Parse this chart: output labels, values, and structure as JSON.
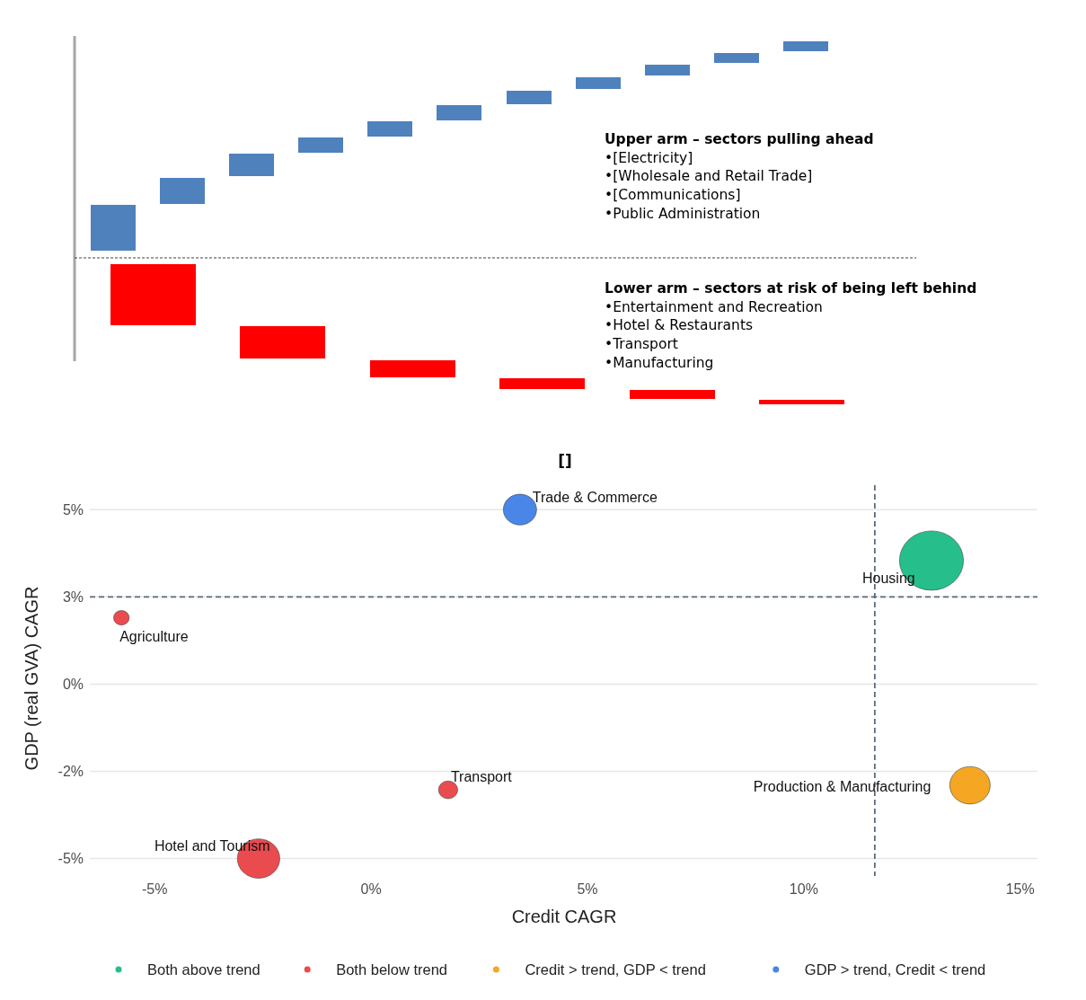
{
  "chart_data": [
    {
      "type": "other",
      "annotations": [
        "Upper arm – sectors pulling ahead\n•[Electricity]\n•[Wholesale and Retail Trade]\n•[Communications]\n•Public Administration",
        "Lower arm – sectors at risk of being left behind\n•Entertainment and Recreation\n•Hotel & Restaurants\n•Transport\n•Manufacturing"
      ]
    },
    {
      "type": "bubble",
      "title": "[]",
      "xlabel": "Credit CAGR",
      "ylabel": "GDP (real GVA) CAGR",
      "xlim": [
        -6.5,
        15.4
      ],
      "ylim": [
        -5.5,
        5.7
      ],
      "xticks": [
        {
          "value": -5,
          "label": "-5%"
        },
        {
          "value": 0,
          "label": "0%"
        },
        {
          "value": 5,
          "label": "5%"
        },
        {
          "value": 10,
          "label": "10%"
        },
        {
          "value": 15,
          "label": "15%"
        }
      ],
      "yticks": [
        {
          "value": -5,
          "label": "-5%"
        },
        {
          "value": -2.5,
          "label": "-2%"
        },
        {
          "value": 0,
          "label": "0%"
        },
        {
          "value": 2.5,
          "label": "3%"
        },
        {
          "value": 5,
          "label": "5%"
        }
      ],
      "grid": "y",
      "legend": "bottom",
      "series": [
        {
          "name": "Both above trend",
          "color": "#26bf8c",
          "x": [
            12.95
          ],
          "values": [
            3.54
          ],
          "sizes": [
            1
          ]
        },
        {
          "name": "Both below trend",
          "color": "#ea4b4f",
          "x": [
            -5.77,
            1.78,
            -2.6
          ],
          "values": [
            1.9,
            -3.03,
            -5.0
          ],
          "sizes": [
            0.06,
            0.09,
            0.44
          ]
        },
        {
          "name": "Credit > trend, GDP < trend",
          "color": "#f5a623",
          "x": [
            13.84
          ],
          "values": [
            -2.9
          ],
          "sizes": [
            0.4
          ]
        },
        {
          "name": "GDP > trend, Credit < trend",
          "color": "#4a86e8",
          "x": [
            3.44
          ],
          "values": [
            5.0
          ],
          "sizes": [
            0.27
          ]
        }
      ],
      "ref_lines": [
        {
          "axis": "x",
          "value": 11.64,
          "line_style": "dashed",
          "color": "#5a6a80"
        },
        {
          "axis": "y",
          "value": 2.5,
          "line_style": "dashed",
          "color": "#5a6a80"
        }
      ],
      "annotations": [
        {
          "text": "Housing",
          "x": 12.95,
          "y": 3.54
        },
        {
          "text": "Agriculture",
          "x": -5.77,
          "y": 1.9
        },
        {
          "text": "Transport",
          "x": 1.78,
          "y": -3.03
        },
        {
          "text": "Hotel and Tourism",
          "x": -2.6,
          "y": -5.0
        },
        {
          "text": "Production & Manufacturing",
          "x": 13.84,
          "y": -2.9
        },
        {
          "text": "Trade & Commerce",
          "x": 3.44,
          "y": 5.0
        }
      ]
    }
  ]
}
